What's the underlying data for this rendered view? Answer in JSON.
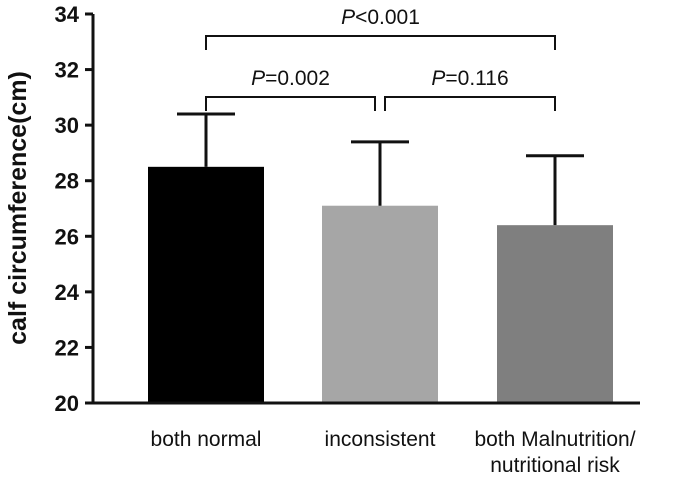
{
  "chart_data": {
    "type": "bar",
    "ylabel": "calf circumference(cm)",
    "ylim": [
      20,
      34
    ],
    "yticks": [
      20,
      22,
      24,
      26,
      28,
      30,
      32,
      34
    ],
    "categories": [
      {
        "lines": [
          "both normal"
        ]
      },
      {
        "lines": [
          "inconsistent"
        ]
      },
      {
        "lines": [
          "both Malnutrition/",
          "nutritional risk"
        ]
      }
    ],
    "values": [
      28.5,
      27.1,
      26.4
    ],
    "error_upper": [
      30.4,
      29.4,
      28.9
    ],
    "bar_colors": [
      "#000000",
      "#a6a6a6",
      "#7f7f7f"
    ],
    "comparisons": [
      {
        "from": 0,
        "to": 1,
        "p_prefix": "P",
        "p_rest": "=0.002",
        "level": 1
      },
      {
        "from": 1,
        "to": 2,
        "p_prefix": "P",
        "p_rest": "=0.116",
        "level": 1
      },
      {
        "from": 0,
        "to": 2,
        "p_prefix": "P",
        "p_rest": "<0.001",
        "level": 2
      }
    ]
  }
}
